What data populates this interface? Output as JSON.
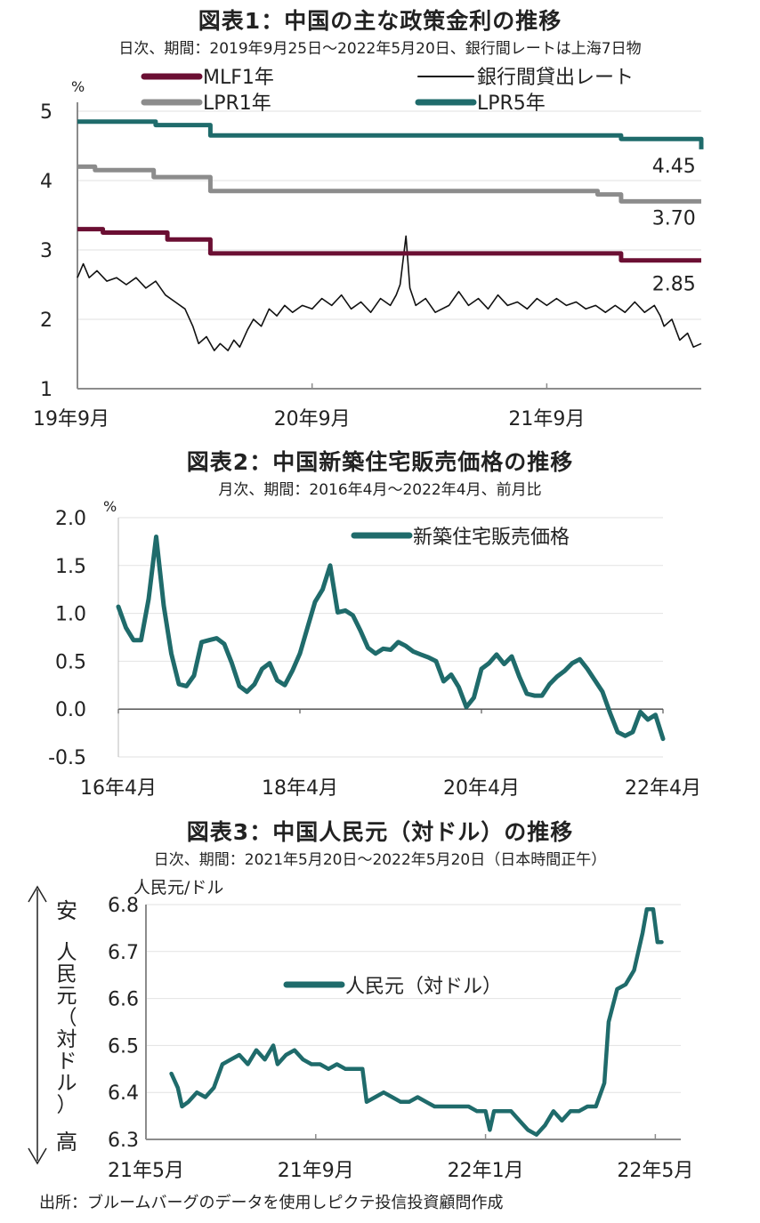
{
  "chart_data": [
    {
      "type": "line",
      "title": "図表1：中国の主な政策金利の推移",
      "subtitle": "日次、期間：2019年9月25日～2022年5月20日、銀行間レートは上海7日物",
      "unit": "%",
      "ylim": [
        1,
        5
      ],
      "yticks": [
        "1",
        "2",
        "3",
        "4",
        "5"
      ],
      "xticks": [
        {
          "t": 0,
          "label": "19年9月"
        },
        {
          "t": 12,
          "label": "20年9月"
        },
        {
          "t": 24,
          "label": "21年9月"
        }
      ],
      "xlim": [
        0,
        31.9
      ],
      "grid": true,
      "legend": [
        "MLF1年",
        "LPR1年",
        "銀行間貸出レート",
        "LPR5年"
      ],
      "colors": {
        "mlf": "#6b0f33",
        "lpr1": "#8c8c8c",
        "interbank": "#111111",
        "lpr5": "#1f6b6b"
      },
      "series": [
        {
          "name": "MLF1年",
          "key": "mlf",
          "step": true,
          "points": [
            [
              0,
              3.3
            ],
            [
              1.3,
              3.25
            ],
            [
              4.6,
              3.15
            ],
            [
              6.8,
              2.95
            ],
            [
              27.8,
              2.85
            ],
            [
              31.9,
              2.85
            ]
          ]
        },
        {
          "name": "LPR1年",
          "key": "lpr1",
          "step": true,
          "points": [
            [
              0,
              4.2
            ],
            [
              0.9,
              4.15
            ],
            [
              3.9,
              4.05
            ],
            [
              6.8,
              3.85
            ],
            [
              26.6,
              3.8
            ],
            [
              27.8,
              3.7
            ],
            [
              31.9,
              3.7
            ]
          ]
        },
        {
          "name": "LPR5年",
          "key": "lpr5",
          "step": true,
          "points": [
            [
              0,
              4.85
            ],
            [
              4.0,
              4.8
            ],
            [
              6.8,
              4.65
            ],
            [
              27.8,
              4.6
            ],
            [
              31.8,
              4.6
            ],
            [
              31.9,
              4.45
            ]
          ]
        },
        {
          "name": "銀行間貸出レート",
          "key": "interbank",
          "step": false,
          "points": [
            [
              0,
              2.6
            ],
            [
              0.3,
              2.8
            ],
            [
              0.6,
              2.6
            ],
            [
              1,
              2.7
            ],
            [
              1.5,
              2.55
            ],
            [
              2,
              2.6
            ],
            [
              2.5,
              2.5
            ],
            [
              3,
              2.6
            ],
            [
              3.5,
              2.45
            ],
            [
              4,
              2.55
            ],
            [
              4.5,
              2.35
            ],
            [
              5,
              2.25
            ],
            [
              5.5,
              2.15
            ],
            [
              5.9,
              1.9
            ],
            [
              6.2,
              1.65
            ],
            [
              6.6,
              1.75
            ],
            [
              7,
              1.55
            ],
            [
              7.3,
              1.65
            ],
            [
              7.7,
              1.55
            ],
            [
              8,
              1.7
            ],
            [
              8.3,
              1.6
            ],
            [
              8.7,
              1.85
            ],
            [
              9,
              2.0
            ],
            [
              9.4,
              1.9
            ],
            [
              9.8,
              2.15
            ],
            [
              10.2,
              2.05
            ],
            [
              10.6,
              2.2
            ],
            [
              11,
              2.1
            ],
            [
              11.5,
              2.2
            ],
            [
              12,
              2.15
            ],
            [
              12.5,
              2.3
            ],
            [
              13,
              2.2
            ],
            [
              13.5,
              2.35
            ],
            [
              14,
              2.15
            ],
            [
              14.5,
              2.25
            ],
            [
              15,
              2.1
            ],
            [
              15.5,
              2.3
            ],
            [
              16,
              2.2
            ],
            [
              16.3,
              2.35
            ],
            [
              16.5,
              2.5
            ],
            [
              16.8,
              3.2
            ],
            [
              17,
              2.45
            ],
            [
              17.3,
              2.2
            ],
            [
              17.8,
              2.3
            ],
            [
              18.3,
              2.1
            ],
            [
              19,
              2.2
            ],
            [
              19.5,
              2.4
            ],
            [
              20,
              2.2
            ],
            [
              20.5,
              2.3
            ],
            [
              21,
              2.15
            ],
            [
              21.5,
              2.35
            ],
            [
              22,
              2.2
            ],
            [
              22.5,
              2.25
            ],
            [
              23,
              2.15
            ],
            [
              23.5,
              2.3
            ],
            [
              24,
              2.2
            ],
            [
              24.5,
              2.3
            ],
            [
              25,
              2.2
            ],
            [
              25.5,
              2.25
            ],
            [
              26,
              2.15
            ],
            [
              26.5,
              2.2
            ],
            [
              27,
              2.1
            ],
            [
              27.5,
              2.2
            ],
            [
              28,
              2.1
            ],
            [
              28.5,
              2.25
            ],
            [
              29,
              2.1
            ],
            [
              29.5,
              2.2
            ],
            [
              29.8,
              2.05
            ],
            [
              30,
              1.9
            ],
            [
              30.4,
              2.0
            ],
            [
              30.8,
              1.7
            ],
            [
              31.2,
              1.8
            ],
            [
              31.5,
              1.6
            ],
            [
              31.9,
              1.65
            ]
          ]
        }
      ],
      "data_labels": [
        {
          "text": "4.45",
          "x": 30.5,
          "y": 4.22
        },
        {
          "text": "3.70",
          "x": 30.5,
          "y": 3.47
        },
        {
          "text": "2.85",
          "x": 30.5,
          "y": 2.52
        }
      ]
    },
    {
      "type": "line",
      "title": "図表2：中国新築住宅販売価格の推移",
      "subtitle": "月次、期間：2016年4月～2022年4月、前月比",
      "unit": "%",
      "ylim": [
        -0.5,
        2.0
      ],
      "yticks": [
        "-0.5",
        "0.0",
        "0.5",
        "1.0",
        "1.5",
        "2.0"
      ],
      "xticks": [
        {
          "t": 0,
          "label": "16年4月"
        },
        {
          "t": 24,
          "label": "18年4月"
        },
        {
          "t": 48,
          "label": "20年4月"
        },
        {
          "t": 72,
          "label": "22年4月"
        }
      ],
      "xlim": [
        0,
        72
      ],
      "grid": true,
      "legend": [
        "新築住宅販売価格"
      ],
      "color": "#1f6b6b",
      "series": [
        {
          "name": "新築住宅販売価格",
          "x": [
            0,
            1,
            2,
            3,
            4,
            5,
            6,
            7,
            8,
            9,
            10,
            11,
            12,
            13,
            14,
            15,
            16,
            17,
            18,
            19,
            20,
            21,
            22,
            23,
            24,
            25,
            26,
            27,
            28,
            29,
            30,
            31,
            32,
            33,
            34,
            35,
            36,
            37,
            38,
            39,
            40,
            41,
            42,
            43,
            44,
            45,
            46,
            47,
            48,
            49,
            50,
            51,
            52,
            53,
            54,
            55,
            56,
            57,
            58,
            59,
            60,
            61,
            62,
            63,
            64,
            65,
            66,
            67,
            68,
            69,
            70,
            71,
            72
          ],
          "values": [
            1.07,
            0.85,
            0.72,
            0.72,
            1.15,
            1.8,
            1.08,
            0.58,
            0.26,
            0.24,
            0.35,
            0.7,
            0.72,
            0.74,
            0.68,
            0.48,
            0.24,
            0.18,
            0.26,
            0.42,
            0.48,
            0.3,
            0.25,
            0.4,
            0.58,
            0.85,
            1.12,
            1.25,
            1.5,
            1.01,
            1.03,
            0.98,
            0.82,
            0.64,
            0.58,
            0.63,
            0.62,
            0.7,
            0.66,
            0.6,
            0.57,
            0.54,
            0.5,
            0.29,
            0.36,
            0.23,
            0.02,
            0.12,
            0.42,
            0.48,
            0.57,
            0.47,
            0.55,
            0.34,
            0.16,
            0.14,
            0.14,
            0.26,
            0.34,
            0.4,
            0.48,
            0.52,
            0.42,
            0.3,
            0.18,
            -0.04,
            -0.24,
            -0.28,
            -0.24,
            -0.03,
            -0.11,
            -0.06,
            -0.31
          ]
        }
      ]
    },
    {
      "type": "line",
      "title": "図表3：中国人民元（対ドル）の推移",
      "subtitle": "日次、期間：2021年5月20日～2022年5月20日（日本時間正午）",
      "unit": "人民元/ドル",
      "ylim": [
        6.3,
        6.8
      ],
      "yticks": [
        "6.3",
        "6.4",
        "6.5",
        "6.6",
        "6.7",
        "6.8"
      ],
      "xticks": [
        {
          "t": 0,
          "label": "21年5月"
        },
        {
          "t": 4,
          "label": "21年9月"
        },
        {
          "t": 8,
          "label": "22年1月"
        },
        {
          "t": 12,
          "label": "22年5月"
        }
      ],
      "xlim": [
        0,
        12.6
      ],
      "grid": true,
      "legend": [
        "人民元（対ドル）"
      ],
      "color": "#1f6b6b",
      "side_labels": {
        "top": "安",
        "axis": "人民元（対ドル）",
        "bottom": "高"
      },
      "series": [
        {
          "name": "人民元（対ドル）",
          "points": [
            [
              0.6,
              6.44
            ],
            [
              0.75,
              6.41
            ],
            [
              0.85,
              6.37
            ],
            [
              1.0,
              6.38
            ],
            [
              1.2,
              6.4
            ],
            [
              1.4,
              6.39
            ],
            [
              1.6,
              6.41
            ],
            [
              1.8,
              6.46
            ],
            [
              2.0,
              6.47
            ],
            [
              2.2,
              6.48
            ],
            [
              2.4,
              6.46
            ],
            [
              2.6,
              6.49
            ],
            [
              2.8,
              6.47
            ],
            [
              3.0,
              6.5
            ],
            [
              3.1,
              6.46
            ],
            [
              3.3,
              6.48
            ],
            [
              3.5,
              6.49
            ],
            [
              3.7,
              6.47
            ],
            [
              3.9,
              6.46
            ],
            [
              4.1,
              6.46
            ],
            [
              4.3,
              6.45
            ],
            [
              4.5,
              6.46
            ],
            [
              4.7,
              6.45
            ],
            [
              4.9,
              6.45
            ],
            [
              5.1,
              6.45
            ],
            [
              5.2,
              6.38
            ],
            [
              5.4,
              6.39
            ],
            [
              5.6,
              6.4
            ],
            [
              5.8,
              6.39
            ],
            [
              6.0,
              6.38
            ],
            [
              6.2,
              6.38
            ],
            [
              6.4,
              6.39
            ],
            [
              6.6,
              6.38
            ],
            [
              6.8,
              6.37
            ],
            [
              7.0,
              6.37
            ],
            [
              7.2,
              6.37
            ],
            [
              7.4,
              6.37
            ],
            [
              7.6,
              6.37
            ],
            [
              7.8,
              6.36
            ],
            [
              8.0,
              6.36
            ],
            [
              8.1,
              6.32
            ],
            [
              8.2,
              6.36
            ],
            [
              8.4,
              6.36
            ],
            [
              8.6,
              6.36
            ],
            [
              8.8,
              6.34
            ],
            [
              9.0,
              6.32
            ],
            [
              9.2,
              6.31
            ],
            [
              9.4,
              6.33
            ],
            [
              9.6,
              6.36
            ],
            [
              9.8,
              6.34
            ],
            [
              10.0,
              6.36
            ],
            [
              10.2,
              6.36
            ],
            [
              10.4,
              6.37
            ],
            [
              10.6,
              6.37
            ],
            [
              10.8,
              6.42
            ],
            [
              10.9,
              6.55
            ],
            [
              11.1,
              6.62
            ],
            [
              11.3,
              6.63
            ],
            [
              11.5,
              6.66
            ],
            [
              11.7,
              6.74
            ],
            [
              11.8,
              6.79
            ],
            [
              11.95,
              6.79
            ],
            [
              12.05,
              6.72
            ],
            [
              12.15,
              6.72
            ]
          ]
        }
      ]
    }
  ],
  "source": "出所：ブルームバーグのデータを使用しピクテ投信投資顧問作成"
}
